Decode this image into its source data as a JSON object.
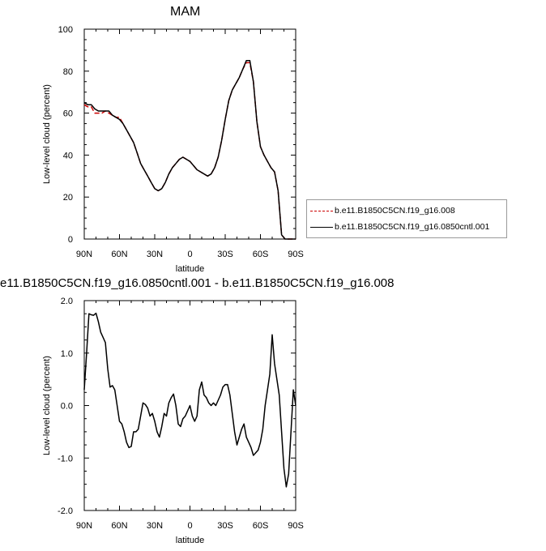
{
  "panels": {
    "top": {
      "title": "MAM"
    },
    "bottom": {
      "title": "e11.B1850C5CN.f19_g16.0850cntl.001 - b.e11.B1850C5CN.f19_g16.008"
    }
  },
  "legend": {
    "items": [
      {
        "label": "b.e11.B1850C5CN.f19_g16.008",
        "color": "#cc0000",
        "dash": "dashed"
      },
      {
        "label": "b.e11.B1850C5CN.f19_g16.0850cntl.001",
        "color": "#000000",
        "dash": "solid"
      }
    ]
  },
  "chart_data": [
    {
      "type": "line",
      "title": "MAM",
      "xlabel": "latitude",
      "ylabel": "Low-level cloud (percent)",
      "xlim": [
        90,
        -90
      ],
      "ylim": [
        0,
        100
      ],
      "xticks": [
        90,
        60,
        30,
        0,
        -30,
        -60,
        -90
      ],
      "xtick_labels": [
        "90N",
        "60N",
        "30N",
        "0",
        "30S",
        "60S",
        "90S"
      ],
      "yticks": [
        0,
        20,
        40,
        60,
        80,
        100
      ],
      "ytick_labels": [
        "0",
        "20",
        "40",
        "60",
        "80",
        "100"
      ],
      "series": [
        {
          "name": "b.e11.B1850C5CN.f19_g16.008",
          "color": "#cc0000",
          "dash": "dashed",
          "x": [
            90,
            87,
            84,
            81,
            78,
            75,
            72,
            69,
            66,
            63,
            60,
            57,
            54,
            51,
            48,
            45,
            42,
            39,
            36,
            33,
            30,
            27,
            24,
            21,
            18,
            15,
            12,
            9,
            6,
            3,
            0,
            -3,
            -6,
            -9,
            -12,
            -15,
            -18,
            -21,
            -24,
            -27,
            -30,
            -33,
            -36,
            -39,
            -42,
            -45,
            -48,
            -51,
            -54,
            -57,
            -60,
            -63,
            -66,
            -69,
            -72,
            -75,
            -78,
            -81,
            -84,
            -87,
            -90
          ],
          "y": [
            64,
            63,
            63,
            60,
            60,
            60,
            61,
            60,
            59,
            58,
            58,
            55,
            52,
            49,
            46,
            41,
            36,
            33,
            30,
            27,
            24,
            23,
            24,
            27,
            31,
            34,
            36,
            38,
            39,
            38,
            37,
            35,
            33,
            32,
            31,
            30,
            31,
            34,
            39,
            47,
            57,
            66,
            71,
            74,
            77,
            81,
            84,
            84,
            75,
            56,
            44,
            40,
            37,
            34,
            32,
            23,
            2,
            0,
            0,
            0,
            0
          ]
        },
        {
          "name": "b.e11.B1850C5CN.f19_g16.0850cntl.001",
          "color": "#000000",
          "dash": "solid",
          "x": [
            90,
            87,
            84,
            81,
            78,
            75,
            72,
            69,
            66,
            63,
            60,
            57,
            54,
            51,
            48,
            45,
            42,
            39,
            36,
            33,
            30,
            27,
            24,
            21,
            18,
            15,
            12,
            9,
            6,
            3,
            0,
            -3,
            -6,
            -9,
            -12,
            -15,
            -18,
            -21,
            -24,
            -27,
            -30,
            -33,
            -36,
            -39,
            -42,
            -45,
            -48,
            -51,
            -54,
            -57,
            -60,
            -63,
            -66,
            -69,
            -72,
            -75,
            -78,
            -81,
            -84,
            -87,
            -90
          ],
          "y": [
            65,
            64,
            64,
            62,
            61,
            61,
            61,
            61,
            59,
            58,
            57,
            55,
            52,
            49,
            46,
            41,
            36,
            33,
            30,
            27,
            24,
            23,
            24,
            27,
            31,
            34,
            36,
            38,
            39,
            38,
            37,
            35,
            33,
            32,
            31,
            30,
            31,
            34,
            39,
            47,
            57,
            66,
            71,
            74,
            77,
            81,
            85,
            85,
            75,
            56,
            44,
            40,
            37,
            34,
            32,
            23,
            2,
            0,
            0,
            0,
            0
          ]
        }
      ]
    },
    {
      "type": "line",
      "title": "e11.B1850C5CN.f19_g16.0850cntl.001 - b.e11.B1850C5CN.f19_g16.008",
      "xlabel": "latitude",
      "ylabel": "Low-level cloud (percent)",
      "xlim": [
        90,
        -90
      ],
      "ylim": [
        -2,
        2
      ],
      "xticks": [
        90,
        60,
        30,
        0,
        -30,
        -60,
        -90
      ],
      "xtick_labels": [
        "90N",
        "60N",
        "30N",
        "0",
        "30S",
        "60S",
        "90S"
      ],
      "yticks": [
        -2,
        -1,
        0,
        1,
        2
      ],
      "ytick_labels": [
        "-2.0",
        "-1.0",
        "0.0",
        "1.0",
        "2.0"
      ],
      "series": [
        {
          "color": "#000000",
          "dash": "solid",
          "x": [
            90,
            88,
            86,
            84,
            82,
            80,
            78,
            76,
            74,
            72,
            70,
            68,
            66,
            64,
            62,
            60,
            58,
            56,
            54,
            52,
            50,
            48,
            46,
            44,
            42,
            40,
            38,
            36,
            34,
            32,
            30,
            28,
            26,
            24,
            22,
            20,
            18,
            16,
            14,
            12,
            10,
            8,
            6,
            4,
            2,
            0,
            -2,
            -4,
            -6,
            -8,
            -10,
            -12,
            -14,
            -16,
            -18,
            -20,
            -22,
            -24,
            -26,
            -28,
            -30,
            -32,
            -34,
            -36,
            -38,
            -40,
            -42,
            -44,
            -46,
            -48,
            -50,
            -52,
            -54,
            -56,
            -58,
            -60,
            -62,
            -64,
            -66,
            -68,
            -70,
            -72,
            -74,
            -76,
            -78,
            -80,
            -82,
            -84,
            -86,
            -88,
            -90
          ],
          "y": [
            0.3,
            1.0,
            1.75,
            1.73,
            1.72,
            1.76,
            1.6,
            1.4,
            1.3,
            1.2,
            0.7,
            0.35,
            0.38,
            0.3,
            0.0,
            -0.3,
            -0.35,
            -0.5,
            -0.7,
            -0.8,
            -0.78,
            -0.5,
            -0.5,
            -0.45,
            -0.2,
            0.05,
            0.02,
            -0.05,
            -0.2,
            -0.15,
            -0.3,
            -0.5,
            -0.6,
            -0.4,
            -0.15,
            -0.2,
            0.05,
            0.15,
            0.22,
            0.0,
            -0.35,
            -0.4,
            -0.25,
            -0.2,
            -0.1,
            0.0,
            -0.2,
            -0.3,
            -0.2,
            0.3,
            0.45,
            0.2,
            0.15,
            0.05,
            0.0,
            0.05,
            0.0,
            0.1,
            0.2,
            0.35,
            0.4,
            0.4,
            0.2,
            -0.15,
            -0.5,
            -0.75,
            -0.6,
            -0.45,
            -0.35,
            -0.6,
            -0.7,
            -0.8,
            -0.95,
            -0.9,
            -0.85,
            -0.7,
            -0.45,
            0.0,
            0.3,
            0.6,
            1.35,
            0.8,
            0.5,
            0.2,
            -0.5,
            -1.2,
            -1.55,
            -1.3,
            -0.5,
            0.3,
            0.0
          ]
        }
      ]
    }
  ]
}
